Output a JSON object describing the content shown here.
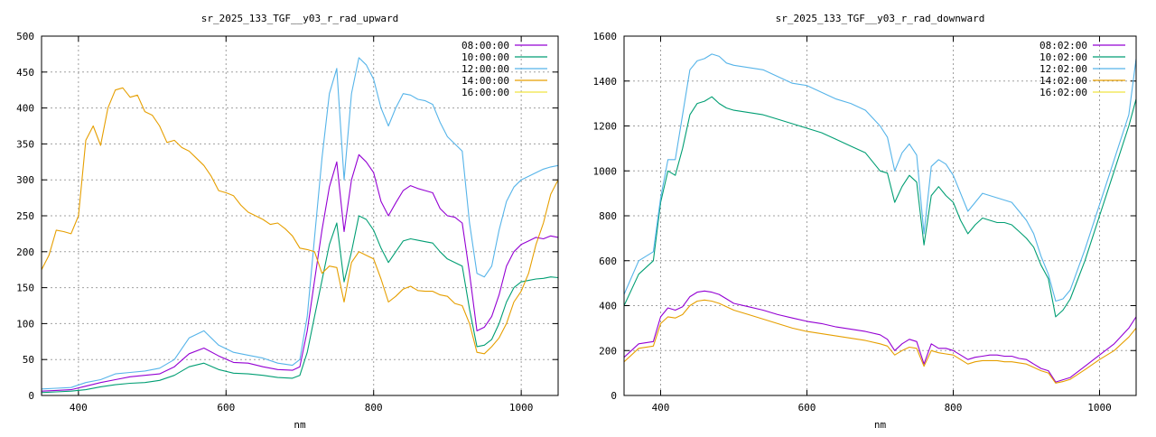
{
  "chart_data": [
    {
      "type": "line",
      "title": "sr_2025_133_TGF__y03_r_rad_upward",
      "xlabel": "nm",
      "ylabel": "",
      "xlim": [
        350,
        1050
      ],
      "ylim": [
        0,
        500
      ],
      "xticks": [
        400,
        600,
        800,
        1000
      ],
      "yticks": [
        0,
        50,
        100,
        150,
        200,
        250,
        300,
        350,
        400,
        450,
        500
      ],
      "grid": true,
      "legend_position": "top-right",
      "series": [
        {
          "name": "08:00:00",
          "color": "#9400d3",
          "x": [
            350,
            370,
            390,
            410,
            430,
            450,
            470,
            490,
            510,
            530,
            550,
            570,
            590,
            610,
            630,
            650,
            670,
            690,
            700,
            710,
            720,
            730,
            740,
            750,
            760,
            770,
            780,
            790,
            800,
            810,
            820,
            830,
            840,
            850,
            860,
            870,
            880,
            890,
            900,
            910,
            920,
            930,
            940,
            950,
            960,
            970,
            980,
            990,
            1000,
            1010,
            1020,
            1030,
            1040,
            1050
          ],
          "y": [
            6,
            7,
            8,
            13,
            18,
            22,
            26,
            28,
            30,
            40,
            58,
            66,
            55,
            46,
            45,
            40,
            36,
            35,
            40,
            90,
            160,
            230,
            290,
            325,
            228,
            300,
            335,
            325,
            310,
            270,
            250,
            268,
            285,
            292,
            288,
            285,
            282,
            260,
            250,
            248,
            240,
            170,
            90,
            95,
            110,
            140,
            180,
            200,
            210,
            215,
            220,
            218,
            222,
            220
          ]
        },
        {
          "name": "10:00:00",
          "color": "#009e73",
          "x": [
            350,
            370,
            390,
            410,
            430,
            450,
            470,
            490,
            510,
            530,
            550,
            570,
            590,
            610,
            630,
            650,
            670,
            690,
            700,
            710,
            720,
            730,
            740,
            750,
            760,
            770,
            780,
            790,
            800,
            810,
            820,
            830,
            840,
            850,
            860,
            870,
            880,
            890,
            900,
            910,
            920,
            930,
            940,
            950,
            960,
            970,
            980,
            990,
            1000,
            1010,
            1020,
            1030,
            1040,
            1050
          ],
          "y": [
            4,
            5,
            6,
            8,
            12,
            15,
            17,
            18,
            21,
            28,
            40,
            45,
            36,
            31,
            30,
            28,
            25,
            24,
            28,
            60,
            110,
            160,
            210,
            240,
            158,
            200,
            250,
            245,
            230,
            205,
            185,
            200,
            215,
            218,
            216,
            214,
            212,
            200,
            190,
            185,
            180,
            120,
            68,
            70,
            78,
            100,
            130,
            150,
            158,
            160,
            162,
            163,
            165,
            164
          ]
        },
        {
          "name": "12:00:00",
          "color": "#56b4e9",
          "x": [
            350,
            370,
            390,
            410,
            430,
            450,
            470,
            490,
            510,
            530,
            550,
            570,
            590,
            610,
            630,
            650,
            670,
            690,
            700,
            710,
            720,
            730,
            740,
            750,
            760,
            770,
            780,
            790,
            800,
            810,
            820,
            830,
            840,
            850,
            860,
            870,
            880,
            890,
            900,
            910,
            920,
            930,
            940,
            950,
            960,
            970,
            980,
            990,
            1000,
            1010,
            1020,
            1030,
            1040,
            1050
          ],
          "y": [
            9,
            10,
            11,
            18,
            22,
            30,
            32,
            34,
            38,
            50,
            80,
            90,
            70,
            60,
            56,
            52,
            45,
            42,
            50,
            110,
            220,
            330,
            420,
            455,
            300,
            420,
            470,
            460,
            440,
            400,
            375,
            400,
            420,
            418,
            412,
            410,
            405,
            380,
            360,
            350,
            340,
            240,
            170,
            165,
            180,
            230,
            270,
            290,
            300,
            305,
            310,
            315,
            318,
            320
          ]
        },
        {
          "name": "14:00:00",
          "color": "#e69f00",
          "x": [
            350,
            360,
            370,
            380,
            390,
            400,
            410,
            420,
            430,
            440,
            450,
            460,
            470,
            480,
            490,
            500,
            510,
            520,
            530,
            540,
            550,
            560,
            570,
            580,
            590,
            600,
            610,
            620,
            630,
            640,
            650,
            660,
            670,
            680,
            690,
            700,
            710,
            720,
            730,
            740,
            750,
            760,
            770,
            780,
            790,
            800,
            810,
            820,
            830,
            840,
            850,
            860,
            870,
            880,
            890,
            900,
            910,
            920,
            930,
            940,
            950,
            960,
            970,
            980,
            990,
            1000,
            1010,
            1020,
            1030,
            1040,
            1050
          ],
          "y": [
            175,
            195,
            230,
            228,
            225,
            250,
            355,
            375,
            348,
            400,
            425,
            428,
            415,
            418,
            395,
            390,
            375,
            352,
            355,
            345,
            340,
            330,
            320,
            305,
            285,
            282,
            278,
            265,
            255,
            250,
            245,
            238,
            240,
            232,
            222,
            205,
            203,
            200,
            170,
            180,
            178,
            130,
            185,
            200,
            195,
            190,
            162,
            130,
            138,
            148,
            152,
            146,
            145,
            145,
            140,
            138,
            128,
            125,
            100,
            60,
            58,
            68,
            80,
            100,
            130,
            145,
            170,
            210,
            240,
            280,
            300
          ]
        },
        {
          "name": "16:00:00",
          "color": "#f0e442",
          "x": [
            350,
            1050
          ],
          "y": [
            null,
            null
          ]
        }
      ]
    },
    {
      "type": "line",
      "title": "sr_2025_133_TGF__y03_r_rad_downward",
      "xlabel": "nm",
      "ylabel": "",
      "xlim": [
        350,
        1050
      ],
      "ylim": [
        0,
        1600
      ],
      "xticks": [
        400,
        600,
        800,
        1000
      ],
      "yticks": [
        0,
        200,
        400,
        600,
        800,
        1000,
        1200,
        1400,
        1600
      ],
      "grid": true,
      "legend_position": "top-right",
      "series": [
        {
          "name": "08:02:00",
          "color": "#9400d3",
          "x": [
            350,
            370,
            390,
            400,
            410,
            420,
            430,
            440,
            450,
            460,
            470,
            480,
            490,
            500,
            520,
            540,
            560,
            580,
            600,
            620,
            640,
            660,
            680,
            700,
            710,
            720,
            730,
            740,
            750,
            760,
            770,
            780,
            790,
            800,
            810,
            820,
            830,
            840,
            850,
            860,
            870,
            880,
            890,
            900,
            910,
            920,
            930,
            940,
            950,
            960,
            980,
            1000,
            1020,
            1040,
            1050
          ],
          "y": [
            170,
            230,
            240,
            350,
            390,
            380,
            395,
            440,
            460,
            465,
            460,
            450,
            430,
            410,
            395,
            380,
            360,
            345,
            330,
            320,
            305,
            295,
            285,
            270,
            250,
            200,
            230,
            250,
            240,
            140,
            230,
            210,
            210,
            200,
            180,
            160,
            170,
            175,
            180,
            180,
            175,
            175,
            165,
            160,
            140,
            120,
            110,
            60,
            70,
            80,
            130,
            180,
            230,
            300,
            350
          ]
        },
        {
          "name": "10:02:00",
          "color": "#009e73",
          "x": [
            350,
            370,
            390,
            400,
            410,
            420,
            430,
            440,
            450,
            460,
            470,
            480,
            490,
            500,
            520,
            540,
            560,
            580,
            600,
            620,
            640,
            660,
            680,
            700,
            710,
            720,
            730,
            740,
            750,
            760,
            770,
            780,
            790,
            800,
            810,
            820,
            830,
            840,
            850,
            860,
            870,
            880,
            890,
            900,
            910,
            920,
            930,
            940,
            950,
            960,
            980,
            1000,
            1020,
            1040,
            1050
          ],
          "y": [
            400,
            540,
            600,
            860,
            1000,
            980,
            1100,
            1250,
            1300,
            1310,
            1330,
            1300,
            1280,
            1270,
            1260,
            1250,
            1230,
            1210,
            1190,
            1170,
            1140,
            1110,
            1080,
            1000,
            990,
            860,
            930,
            980,
            950,
            670,
            890,
            930,
            890,
            860,
            780,
            720,
            760,
            790,
            780,
            770,
            770,
            760,
            730,
            700,
            660,
            580,
            520,
            350,
            380,
            430,
            600,
            800,
            1000,
            1200,
            1320
          ]
        },
        {
          "name": "12:02:00",
          "color": "#56b4e9",
          "x": [
            350,
            370,
            390,
            400,
            410,
            420,
            430,
            440,
            450,
            460,
            470,
            480,
            490,
            500,
            520,
            540,
            560,
            580,
            600,
            620,
            640,
            660,
            680,
            700,
            710,
            720,
            730,
            740,
            750,
            760,
            770,
            780,
            790,
            800,
            810,
            820,
            830,
            840,
            850,
            860,
            870,
            880,
            890,
            900,
            910,
            920,
            930,
            940,
            950,
            960,
            980,
            1000,
            1020,
            1040,
            1050
          ],
          "y": [
            450,
            600,
            640,
            880,
            1050,
            1050,
            1250,
            1450,
            1490,
            1500,
            1520,
            1510,
            1480,
            1470,
            1460,
            1450,
            1420,
            1390,
            1380,
            1350,
            1320,
            1300,
            1270,
            1200,
            1150,
            1000,
            1080,
            1120,
            1070,
            720,
            1020,
            1050,
            1030,
            980,
            900,
            820,
            860,
            900,
            890,
            880,
            870,
            860,
            820,
            780,
            720,
            620,
            540,
            420,
            430,
            470,
            650,
            850,
            1050,
            1250,
            1500
          ]
        },
        {
          "name": "14:02:00",
          "color": "#e69f00",
          "x": [
            350,
            370,
            390,
            400,
            410,
            420,
            430,
            440,
            450,
            460,
            470,
            480,
            490,
            500,
            520,
            540,
            560,
            580,
            600,
            620,
            640,
            660,
            680,
            700,
            710,
            720,
            730,
            740,
            750,
            760,
            770,
            780,
            790,
            800,
            810,
            820,
            830,
            840,
            850,
            860,
            870,
            880,
            890,
            900,
            910,
            920,
            930,
            940,
            950,
            960,
            980,
            1000,
            1020,
            1040,
            1050
          ],
          "y": [
            150,
            210,
            220,
            320,
            350,
            345,
            360,
            400,
            420,
            425,
            420,
            410,
            395,
            380,
            360,
            340,
            320,
            300,
            285,
            275,
            265,
            255,
            245,
            230,
            220,
            180,
            200,
            215,
            210,
            130,
            200,
            190,
            185,
            180,
            160,
            140,
            150,
            155,
            155,
            155,
            150,
            150,
            145,
            140,
            125,
            110,
            100,
            55,
            62,
            72,
            115,
            160,
            200,
            260,
            300
          ]
        },
        {
          "name": "16:02:00",
          "color": "#f0e442",
          "x": [
            350,
            1050
          ],
          "y": [
            null,
            null
          ]
        }
      ]
    }
  ]
}
